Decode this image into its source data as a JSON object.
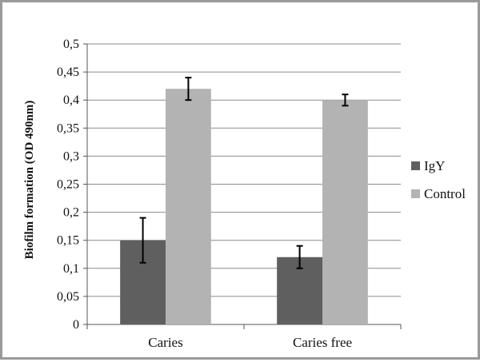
{
  "chart_data": {
    "type": "bar",
    "title": "",
    "xlabel": "",
    "ylabel": "Biofilm formation (OD 490nm)",
    "categories": [
      "Caries",
      "Caries free"
    ],
    "series": [
      {
        "name": "IgY",
        "values": [
          0.15,
          0.12
        ],
        "errors": [
          0.04,
          0.02
        ],
        "color": "#5f5f5f"
      },
      {
        "name": "Control",
        "values": [
          0.42,
          0.4
        ],
        "errors": [
          0.02,
          0.01
        ],
        "color": "#b3b3b3"
      }
    ],
    "ylim": [
      0,
      0.5
    ],
    "yticks": [
      0,
      0.05,
      0.1,
      0.15,
      0.2,
      0.25,
      0.3,
      0.35,
      0.4,
      0.45,
      0.5
    ],
    "ytick_labels": [
      "0",
      "0,05",
      "0,1",
      "0,15",
      "0,2",
      "0,25",
      "0,3",
      "0,35",
      "0,4",
      "0,45",
      "0,5"
    ],
    "grid": true,
    "legend_position": "right"
  }
}
